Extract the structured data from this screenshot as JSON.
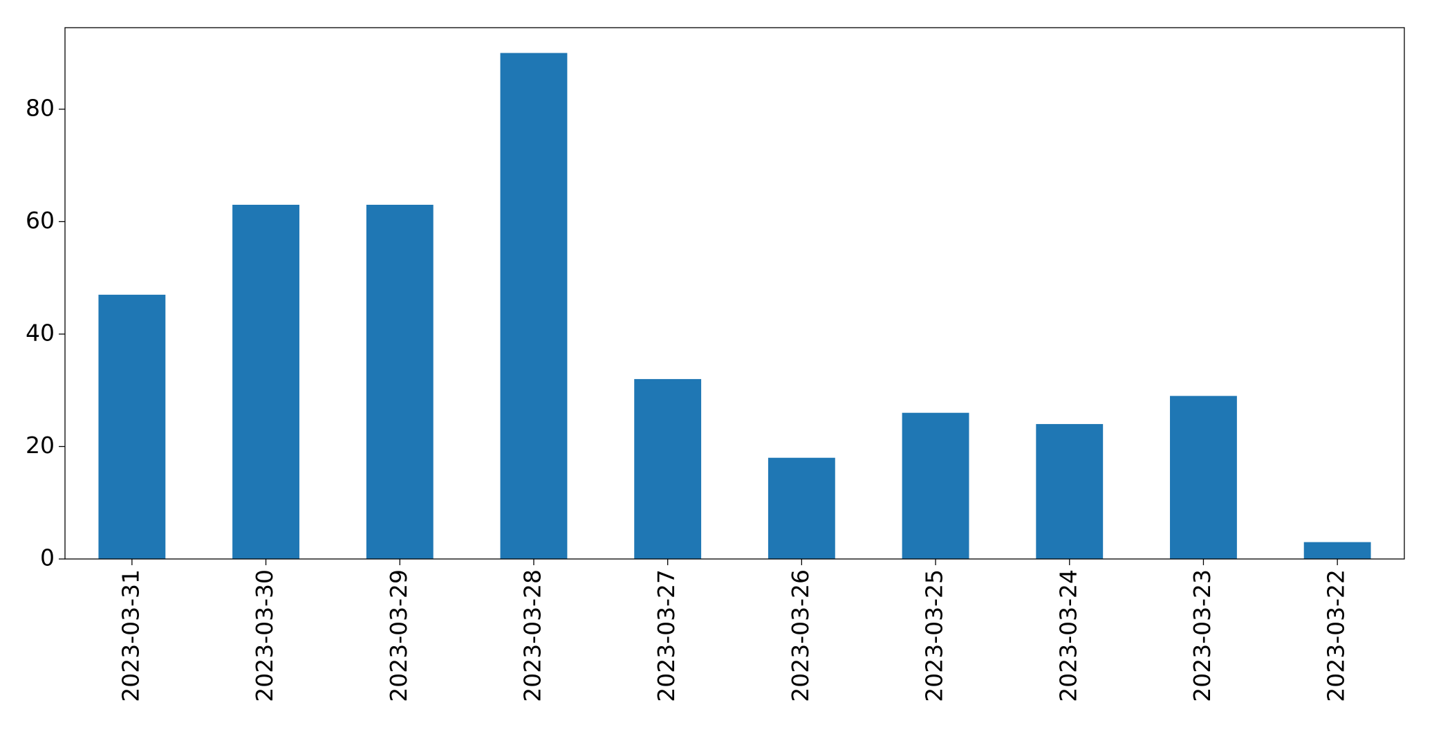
{
  "chart_data": {
    "type": "bar",
    "categories": [
      "2023-03-31",
      "2023-03-30",
      "2023-03-29",
      "2023-03-28",
      "2023-03-27",
      "2023-03-26",
      "2023-03-25",
      "2023-03-24",
      "2023-03-23",
      "2023-03-22"
    ],
    "values": [
      47,
      63,
      63,
      90,
      32,
      18,
      26,
      24,
      29,
      3
    ],
    "color": "#1f77b4",
    "ylim": [
      0,
      94.5
    ],
    "yticks": [
      0,
      20,
      40,
      60,
      80
    ],
    "grid": false
  }
}
